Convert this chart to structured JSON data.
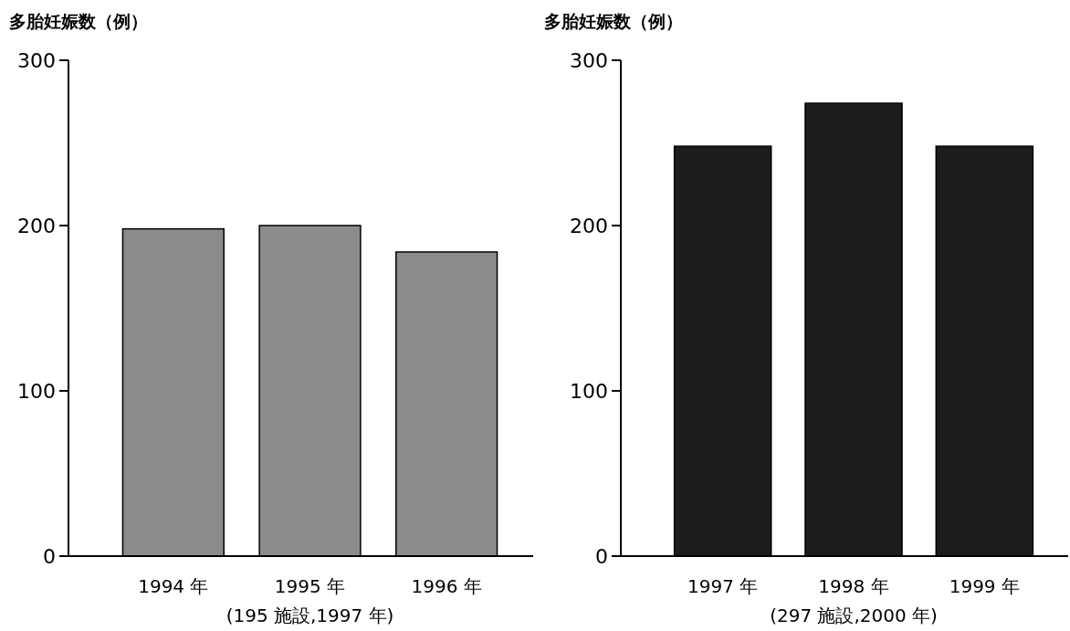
{
  "chart_data": [
    {
      "type": "bar",
      "ylabel": "多胎妊娠数（例）",
      "categories": [
        "1994 年",
        "1995 年",
        "1996 年"
      ],
      "values": [
        198,
        200,
        184
      ],
      "color": "#8c8c8c",
      "ylim": [
        0,
        300
      ],
      "yticks": [
        0,
        100,
        200,
        300
      ],
      "annotations": [
        "(195 施設,1997 年)"
      ]
    },
    {
      "type": "bar",
      "ylabel": "多胎妊娠数（例）",
      "categories": [
        "1997 年",
        "1998 年",
        "1999 年"
      ],
      "values": [
        248,
        274,
        248
      ],
      "color": "#1c1c1c",
      "ylim": [
        0,
        300
      ],
      "yticks": [
        0,
        100,
        200,
        300
      ],
      "annotations": [
        "(297 施設,2000 年)"
      ]
    }
  ]
}
